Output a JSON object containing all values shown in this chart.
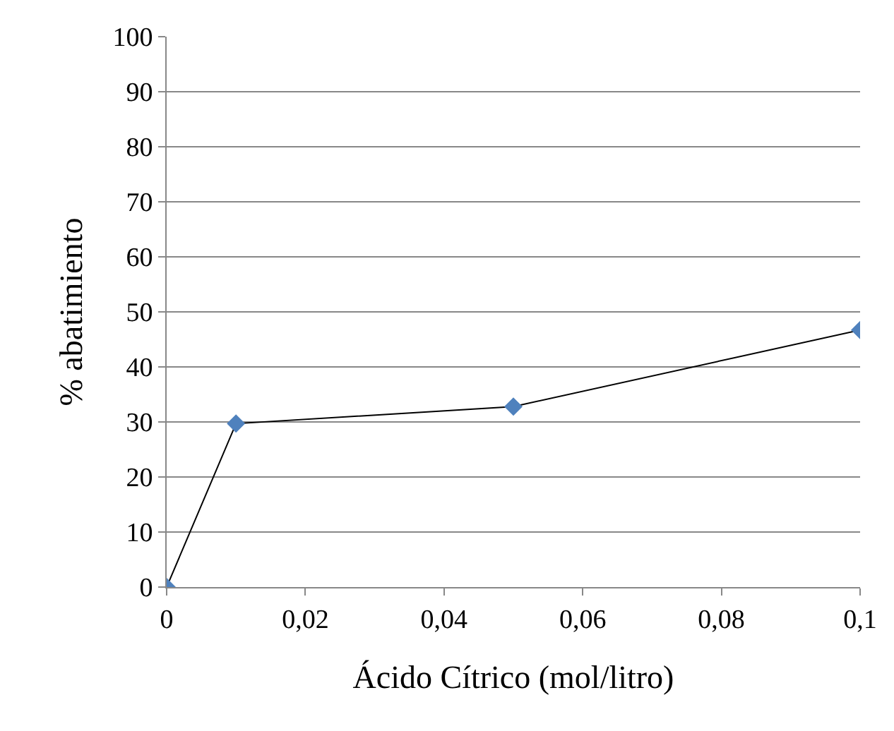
{
  "chart_data": {
    "type": "line",
    "xlabel": "Ácido Cítrico (mol/litro)",
    "ylabel": "% abatimiento",
    "x": [
      0,
      0.01,
      0.05,
      0.1
    ],
    "series": [
      {
        "color": "#4f81bd",
        "values": [
          0,
          29.7,
          32.8,
          46.7
        ]
      }
    ],
    "xlim": [
      0,
      0.1
    ],
    "ylim": [
      0,
      100
    ],
    "xticks": [
      0,
      {
        "value": 0.02,
        "label": "0,02"
      },
      {
        "value": 0.04,
        "label": "0,04"
      },
      {
        "value": 0.06,
        "label": "0,06"
      },
      {
        "value": 0.08,
        "label": "0,08"
      },
      {
        "value": 0.1,
        "label": "0,1"
      }
    ],
    "yticks": [
      0,
      10,
      20,
      30,
      40,
      50,
      60,
      70,
      80,
      90,
      100
    ],
    "grid": "y",
    "legend": false,
    "marker": "diamond",
    "line_style": "solid"
  }
}
